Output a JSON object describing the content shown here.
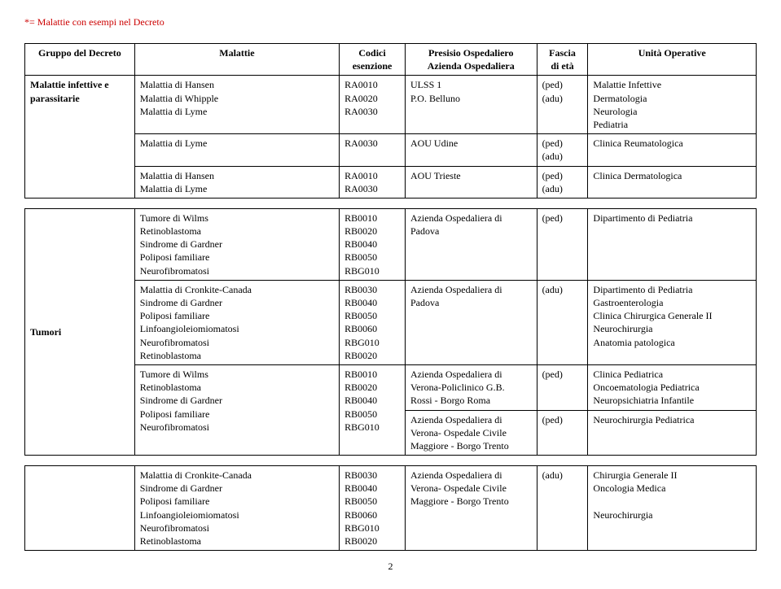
{
  "note": "*= Malattie con esempi nel Decreto",
  "headers": {
    "c1a": "Gruppo del Decreto",
    "c2a": "Malattie",
    "c3a": "Codici",
    "c3b": "esenzione",
    "c4a": "Presisio Ospedaliero",
    "c4b": "Azienda Ospedaliera",
    "c5a": "Fascia",
    "c5b": "di età",
    "c6a": "Unità Operative"
  },
  "t1": {
    "r1": {
      "c1a": "Malattie infettive e",
      "c1b": "parassitarie",
      "m1": "Malattia di Hansen",
      "m2": "Malattia di Whipple",
      "m3": "Malattia di Lyme",
      "k1": "RA0010",
      "k2": "RA0020",
      "k3": "RA0030",
      "p1": "ULSS 1",
      "p2": "P.O. Belluno",
      "f1": "(ped)",
      "f2": "(adu)",
      "u1": "Malattie Infettive",
      "u2": "Dermatologia",
      "u3": "Neurologia",
      "u4": "Pediatria"
    },
    "r2": {
      "m1": "Malattia di Lyme",
      "k1": "RA0030",
      "p1": "AOU Udine",
      "f1": "(ped)",
      "f2": "(adu)",
      "u1": "Clinica Reumatologica"
    },
    "r3": {
      "m1": "Malattia di Hansen",
      "m2": "Malattia di Lyme",
      "k1": "RA0010",
      "k2": "RA0030",
      "p1": "AOU Trieste",
      "f1": "(ped)",
      "f2": "(adu)",
      "u1": "Clinica Dermatologica"
    }
  },
  "t2": {
    "r1": {
      "m1": "Tumore di Wilms",
      "m2": "Retinoblastoma",
      "m3": "Sindrome di Gardner",
      "m4": "Poliposi familiare",
      "m5": "Neurofibromatosi",
      "k1": "RB0010",
      "k2": "RB0020",
      "k3": "RB0040",
      "k4": "RB0050",
      "k5": "RBG010",
      "p1": "Azienda Ospedaliera di",
      "p2": "Padova",
      "f1": "(ped)",
      "u1": "Dipartimento di Pediatria"
    },
    "r2": {
      "c1": "Tumori",
      "m1": "Malattia di Cronkite-Canada",
      "m2": "Sindrome di Gardner",
      "m3": "Poliposi familiare",
      "m4": "Linfoangioleiomiomatosi",
      "m5": "Neurofibromatosi",
      "m6": "Retinoblastoma",
      "k1": "RB0030",
      "k2": "RB0040",
      "k3": "RB0050",
      "k4": "RB0060",
      "k5": "RBG010",
      "k6": "RB0020",
      "p1": "Azienda Ospedaliera di",
      "p2": "Padova",
      "f1": "(adu)",
      "u1": "Dipartimento di Pediatria",
      "u2": "Gastroenterologia",
      "u3": "Clinica Chirurgica Generale II",
      "u4": "Neurochirurgia",
      "u5": "Anatomia patologica"
    },
    "r3": {
      "m1": "Tumore di Wilms",
      "m2": "Retinoblastoma",
      "m3": "Sindrome di Gardner",
      "m4": "Poliposi familiare",
      "m5": "Neurofibromatosi",
      "k1": "RB0010",
      "k2": "RB0020",
      "k3": "RB0040",
      "k4": "RB0050",
      "k5": "RBG010",
      "p1": "Azienda Ospedaliera di",
      "p2": "Verona-Policlinico G.B.",
      "p3": "Rossi - Borgo Roma",
      "f1": "(ped)",
      "u1": "Clinica Pediatrica",
      "u2": "Oncoematologia Pediatrica",
      "u3": "Neuropsichiatria Infantile"
    },
    "r4": {
      "p1": "Azienda Ospedaliera di",
      "p2": "Verona- Ospedale Civile",
      "p3": "Maggiore - Borgo Trento",
      "f1": "(ped)",
      "u1": "Neurochirurgia Pediatrica"
    }
  },
  "t3": {
    "r1": {
      "m1": "Malattia di Cronkite-Canada",
      "m2": "Sindrome di Gardner",
      "m3": "Poliposi familiare",
      "m4": "Linfoangioleiomiomatosi",
      "m5": "Neurofibromatosi",
      "m6": "Retinoblastoma",
      "k1": "RB0030",
      "k2": "RB0040",
      "k3": "RB0050",
      "k4": "RB0060",
      "k5": "RBG010",
      "k6": "RB0020",
      "p1": "Azienda Ospedaliera di",
      "p2": "Verona- Ospedale Civile",
      "p3": "Maggiore - Borgo Trento",
      "f1": "(adu)",
      "u1": "Chirurgia Generale II",
      "u2": "Oncologia Medica",
      "u3": "",
      "u4": "Neurochirurgia"
    }
  },
  "pagenum": "2"
}
